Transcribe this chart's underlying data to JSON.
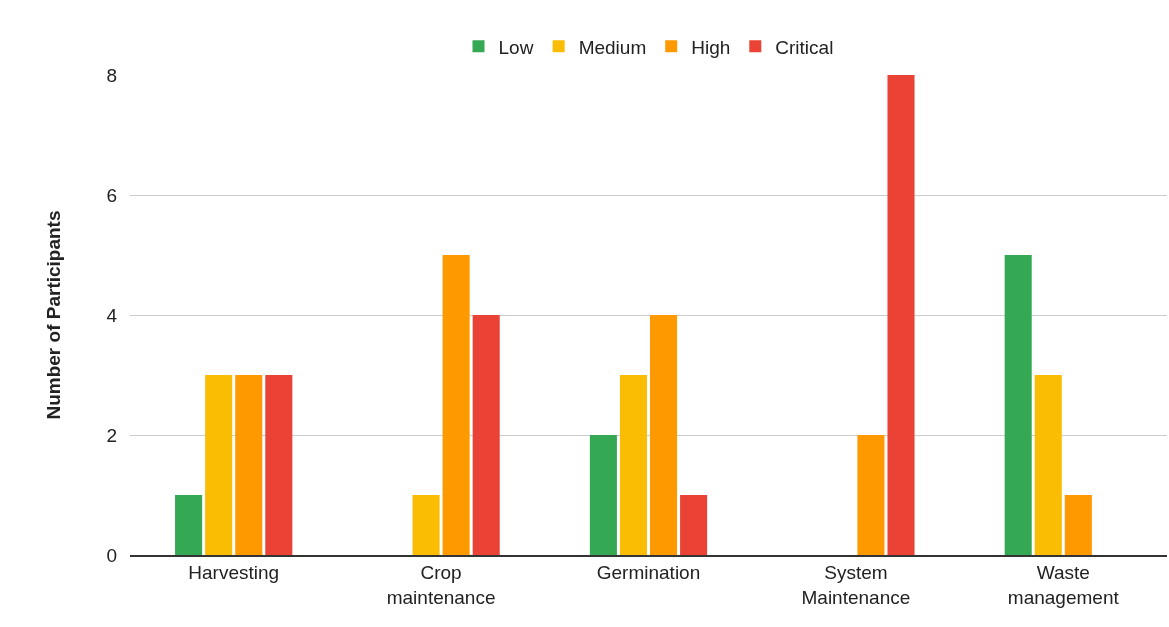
{
  "chart_data": {
    "type": "bar",
    "ylabel": "Number of Participants",
    "categories": [
      "Harvesting",
      "Crop maintenance",
      "Germination",
      "System Maintenance",
      "Waste management"
    ],
    "series": [
      {
        "name": "Low",
        "color": "#34a853",
        "values": [
          1,
          0,
          2,
          0,
          5
        ]
      },
      {
        "name": "Medium",
        "color": "#fbbc04",
        "values": [
          3,
          1,
          3,
          0,
          3
        ]
      },
      {
        "name": "High",
        "color": "#ff9900",
        "values": [
          3,
          5,
          4,
          2,
          1
        ]
      },
      {
        "name": "Critical",
        "color": "#ea4335",
        "values": [
          3,
          4,
          1,
          8,
          0
        ]
      }
    ],
    "ylim": [
      0,
      8
    ],
    "yticks": [
      0,
      2,
      4,
      6,
      8
    ],
    "grid": "y",
    "legend": "top"
  }
}
